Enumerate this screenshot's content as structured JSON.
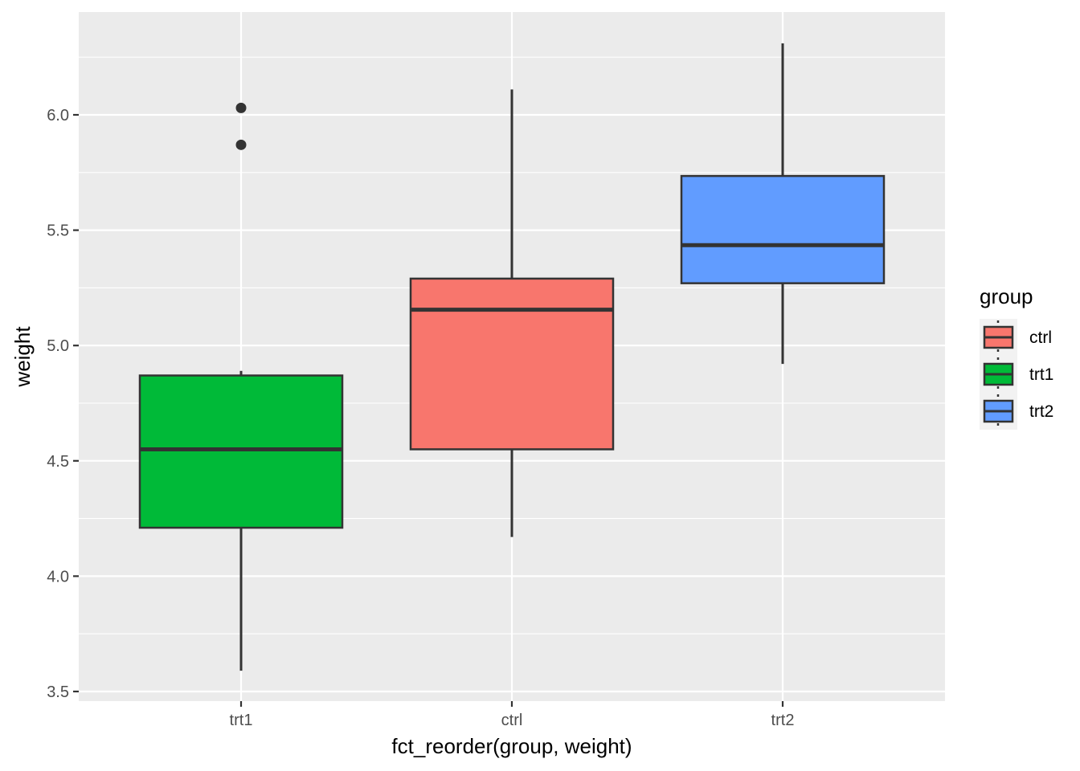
{
  "chart_data": {
    "type": "box",
    "title": "",
    "xlabel": "fct_reorder(group, weight)",
    "ylabel": "weight",
    "ylim": [
      3.45,
      6.45
    ],
    "yticks": [
      3.5,
      4.0,
      4.5,
      5.0,
      5.5,
      6.0
    ],
    "ytick_labels": [
      "3.5",
      "4.0",
      "4.5",
      "5.0",
      "5.5",
      "6.0"
    ],
    "grid": true,
    "categories": [
      "trt1",
      "ctrl",
      "trt2"
    ],
    "boxes": [
      {
        "category": "trt1",
        "group": "trt1",
        "min": 3.59,
        "q1": 4.21,
        "median": 4.55,
        "q3": 4.87,
        "max": 4.89,
        "outliers": [
          5.87,
          6.03
        ]
      },
      {
        "category": "ctrl",
        "group": "ctrl",
        "min": 4.17,
        "q1": 4.55,
        "median": 5.155,
        "q3": 5.29,
        "max": 6.11,
        "outliers": []
      },
      {
        "category": "trt2",
        "group": "trt2",
        "min": 4.92,
        "q1": 5.27,
        "median": 5.435,
        "q3": 5.735,
        "max": 6.31,
        "outliers": []
      }
    ],
    "legend": {
      "title": "group",
      "position": "right",
      "entries": [
        {
          "label": "ctrl",
          "color": "#F8766D"
        },
        {
          "label": "trt1",
          "color": "#00BA38"
        },
        {
          "label": "trt2",
          "color": "#619CFF"
        }
      ]
    },
    "colors": {
      "panel_background": "#EBEBEB",
      "grid": "#FFFFFF",
      "outline": "#333333",
      "ctrl": "#F8766D",
      "trt1": "#00BA38",
      "trt2": "#619CFF"
    }
  }
}
